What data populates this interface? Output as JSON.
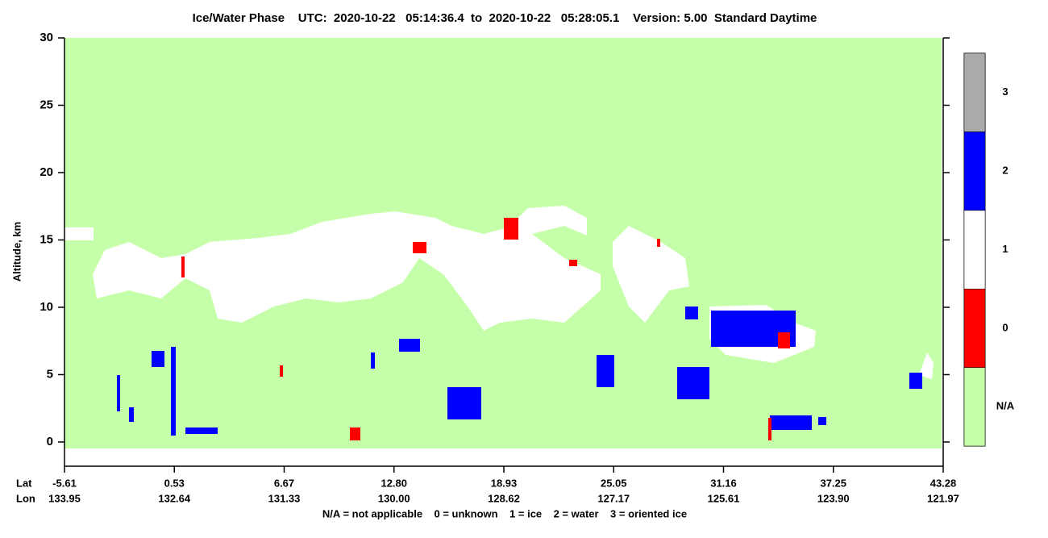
{
  "chart_data": {
    "type": "heatmap",
    "title": "Ice/Water Phase    UTC:  2020-10-22   05:14:36.4  to  2020-10-22   05:28:05.1    Version: 5.00  Standard Daytime",
    "y_label": "Altitude, km",
    "ylim": [
      -1.8,
      30
    ],
    "yticks": [
      0,
      5,
      10,
      15,
      20,
      25,
      30
    ],
    "x_rows": [
      {
        "name": "Lat",
        "labels": [
          "-5.61",
          "0.53",
          "6.67",
          "12.80",
          "18.93",
          "25.05",
          "31.16",
          "37.25",
          "43.28"
        ]
      },
      {
        "name": "Lon",
        "labels": [
          "133.95",
          "132.64",
          "131.33",
          "130.00",
          "128.62",
          "127.17",
          "125.61",
          "123.90",
          "121.97"
        ]
      }
    ],
    "colorbar": {
      "categories": [
        "N/A",
        "0",
        "1",
        "2",
        "3"
      ],
      "colors": [
        "#c6ffaa",
        "#ff0000",
        "#ffffff",
        "#0000ff",
        "#aaaaaa"
      ]
    },
    "footnote": "N/A = not applicable    0 = unknown    1 = ice    2 = water    3 = oriented ice"
  }
}
